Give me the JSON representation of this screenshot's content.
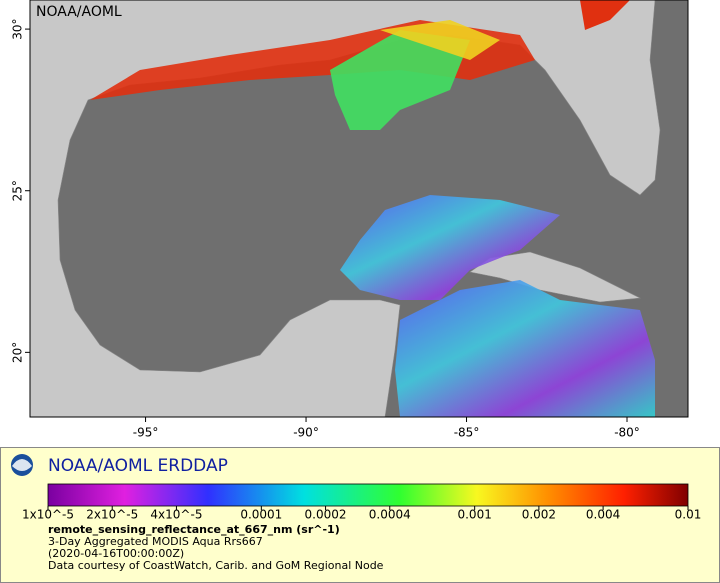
{
  "header": {
    "watermark": "NOAA/AOML"
  },
  "map": {
    "xlim": [
      -98.6,
      -78.1
    ],
    "ylim": [
      18,
      30.9
    ],
    "xticks": [
      {
        "value": -95,
        "label": "-95°"
      },
      {
        "value": -90,
        "label": "-90°"
      },
      {
        "value": -85,
        "label": "-85°"
      },
      {
        "value": -80,
        "label": "-80°"
      }
    ],
    "yticks": [
      {
        "value": 20,
        "label": "20°"
      },
      {
        "value": 25,
        "label": "25°"
      },
      {
        "value": 30,
        "label": "30°"
      }
    ]
  },
  "legend": {
    "title": "NOAA/AOML ERDDAP",
    "colorbar": {
      "scale": "log",
      "lim": [
        1e-05,
        0.01
      ],
      "ticks": [
        {
          "value": 1e-05,
          "label": "1x10^-5"
        },
        {
          "value": 2e-05,
          "label": "2x10^-5"
        },
        {
          "value": 4e-05,
          "label": "4x10^-5"
        },
        0.0001,
        0.0002,
        0.0004,
        0.001,
        0.002,
        0.004,
        0.01
      ]
    },
    "variable": "remote_sensing_reflectance_at_667_nm (sr^-1)",
    "lines": [
      "3-Day Aggregated MODIS Aqua Rrs667",
      "(2020-04-16T00:00:00Z)",
      "Data courtesy of CoastWatch, Carib. and GoM Regional Node"
    ]
  }
}
